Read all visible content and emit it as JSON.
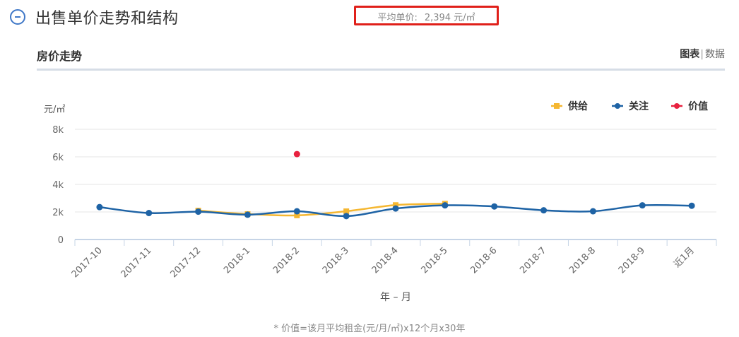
{
  "header": {
    "title": "出售单价走势和结构",
    "collapse_icon": "minus-circle-icon"
  },
  "summary": {
    "avg_price_label": "平均单价:",
    "avg_price_value": "2,394 元/㎡"
  },
  "section": {
    "title": "房价走势",
    "view_chart": "图表",
    "view_separator": "|",
    "view_data": "数据"
  },
  "chart_data": {
    "type": "line",
    "categories": [
      "2017-10",
      "2017-11",
      "2017-12",
      "2018-1",
      "2018-2",
      "2018-3",
      "2018-4",
      "2018-5",
      "2018-6",
      "2018-7",
      "2018-8",
      "2018-9",
      "近1月"
    ],
    "y_unit": "元/㎡",
    "xlabel": "年 – 月",
    "ylim": [
      0,
      8000
    ],
    "yticks": [
      0,
      2000,
      4000,
      6000,
      8000
    ],
    "ytick_labels": [
      "0",
      "2k",
      "4k",
      "6k",
      "8k"
    ],
    "grid": true,
    "legend_position": "top-right",
    "series": [
      {
        "name": "供给",
        "color": "#f5b731",
        "marker": "square",
        "values": [
          null,
          null,
          2100,
          1850,
          1750,
          2050,
          2500,
          2600,
          null,
          null,
          null,
          null,
          null
        ]
      },
      {
        "name": "关注",
        "color": "#1e63a5",
        "marker": "circle",
        "values": [
          2350,
          1920,
          2020,
          1800,
          2050,
          1700,
          2250,
          2480,
          2400,
          2120,
          2050,
          2480,
          2450
        ]
      },
      {
        "name": "价值",
        "color": "#e8213f",
        "marker": "circle",
        "values": [
          null,
          null,
          null,
          null,
          6200,
          null,
          null,
          null,
          null,
          null,
          null,
          null,
          null
        ]
      }
    ]
  },
  "footnote": "* 价值=该月平均租金(元/月/㎡)x12个月x30年"
}
